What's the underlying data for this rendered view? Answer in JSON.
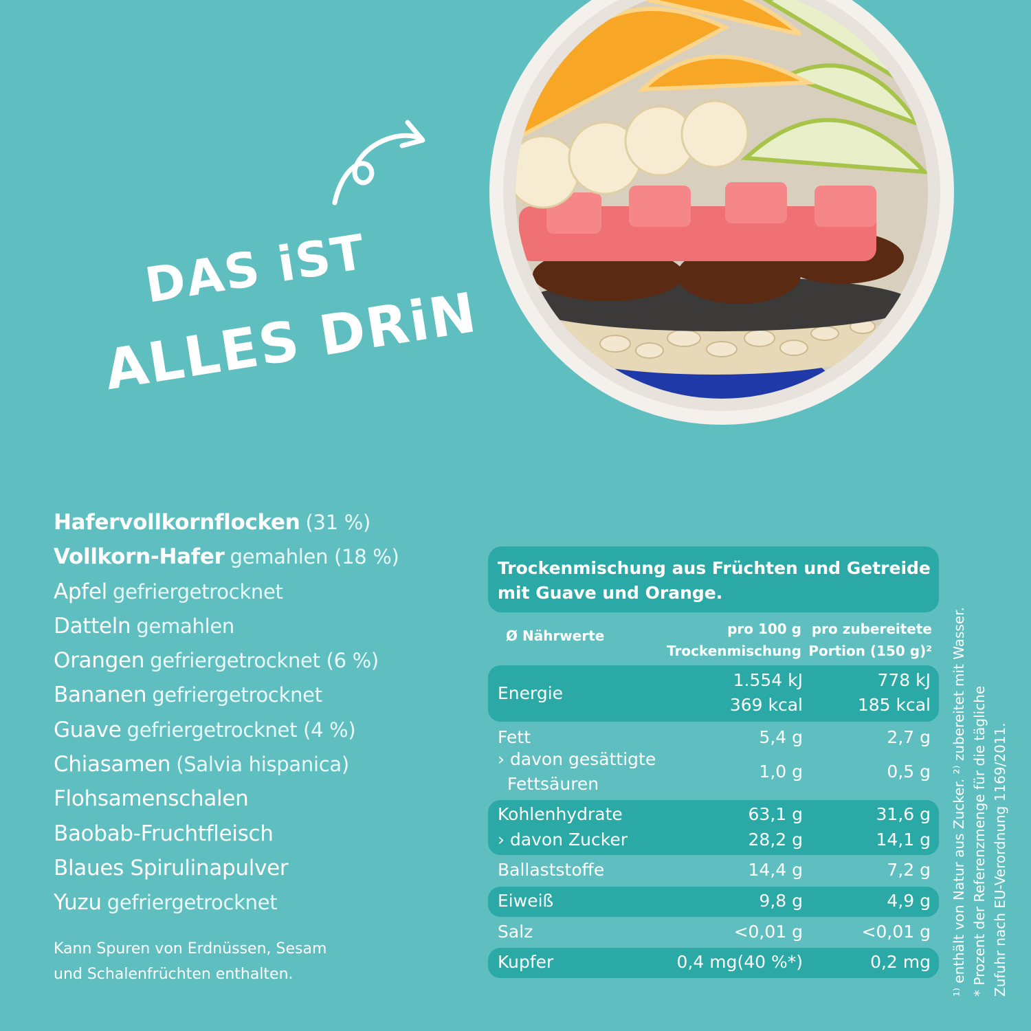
{
  "headline": {
    "line1": "DAS iST",
    "line2": "ALLES DRiN"
  },
  "ingredients": [
    {
      "name": "Hafervollkornflocken",
      "heavy": true,
      "detail": "(31 %)"
    },
    {
      "name": "Vollkorn-Hafer",
      "heavy": true,
      "detail": "gemahlen (18 %)"
    },
    {
      "name": "Apfel",
      "heavy": false,
      "detail": "gefriergetrocknet"
    },
    {
      "name": "Datteln",
      "heavy": false,
      "detail": "gemahlen"
    },
    {
      "name": "Orangen",
      "heavy": false,
      "detail": "gefriergetrocknet (6 %)"
    },
    {
      "name": "Bananen",
      "heavy": false,
      "detail": "gefriergetrocknet"
    },
    {
      "name": "Guave",
      "heavy": false,
      "detail": "gefriergetrocknet (4 %)"
    },
    {
      "name": "Chiasamen",
      "heavy": false,
      "detail": "(Salvia hispanica)"
    },
    {
      "name": "Flohsamenschalen",
      "heavy": false,
      "detail": ""
    },
    {
      "name": "Baobab-Fruchtfleisch",
      "heavy": false,
      "detail": ""
    },
    {
      "name": "Blaues Spirulinapulver",
      "heavy": false,
      "detail": ""
    },
    {
      "name": "Yuzu",
      "heavy": false,
      "detail": "gefriergetrocknet"
    }
  ],
  "allergen": {
    "line1": "Kann Spuren von Erdnüssen, Sesam",
    "line2": "und Schalenfrüchten enthalten."
  },
  "nutrition": {
    "title_line1": "Trockenmischung aus Früchten und Getreide",
    "title_line2": "mit Guave und Orange.",
    "header_label": "Ø Nährwerte",
    "col1_line1": "pro 100 g",
    "col1_line2": "Trockenmischung",
    "col2_line1": "pro zubereitete",
    "col2_line2": "Portion (150 g)²",
    "rows": {
      "energie": {
        "label": "Energie",
        "c1a": "1.554 kJ",
        "c1b": "369 kcal",
        "c2a": "778 kJ",
        "c2b": "185 kcal"
      },
      "fett": {
        "label": "Fett",
        "c1": "5,4 g",
        "c2": "2,7 g"
      },
      "gesaettigt": {
        "label1": "› davon gesättigte",
        "label2": "Fettsäuren",
        "c1": "1,0 g",
        "c2": "0,5 g"
      },
      "kohlenhydrate": {
        "label": "Kohlenhydrate",
        "c1": "63,1 g",
        "c2": "31,6 g"
      },
      "zucker": {
        "label": "› davon Zucker",
        "c1": "28,2 g",
        "c2": "14,1 g"
      },
      "ballaststoffe": {
        "label": "Ballaststoffe",
        "c1": "14,4 g",
        "c2": "7,2 g"
      },
      "eiweiss": {
        "label": "Eiweiß",
        "c1": "9,8 g",
        "c2": "4,9 g"
      },
      "salz": {
        "label": "Salz",
        "c1": "<0,01 g",
        "c2": "<0,01 g"
      },
      "kupfer": {
        "label": "Kupfer",
        "c1": "0,4 mg(40 %*)",
        "c2": "0,2 mg"
      }
    }
  },
  "footnotes": {
    "line1": "¹⁾ enthält von Natur aus Zucker. ²⁾ zubereitet mit Wasser.",
    "line2": "* Prozent der Referenzmenge für die tägliche",
    "line3": "Zufuhr nach EU-Verordnung 1169/2011."
  }
}
